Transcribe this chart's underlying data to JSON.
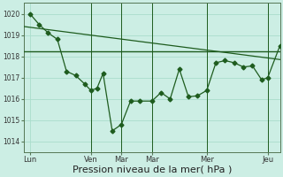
{
  "background_color": "#cceee4",
  "grid_color": "#aaddcc",
  "line_color": "#1e5c1e",
  "marker": "D",
  "marker_size": 2.5,
  "xlabel": "Pression niveau de la mer( hPa )",
  "xlabel_fontsize": 8,
  "ylim": [
    1013.5,
    1020.5
  ],
  "yticks": [
    1014,
    1015,
    1016,
    1017,
    1018,
    1019,
    1020
  ],
  "xlim": [
    0,
    42
  ],
  "xtick_positions": [
    1,
    11,
    16,
    21,
    30,
    40
  ],
  "xtick_labels": [
    "Lun",
    "Ven",
    "Mar",
    "Mar",
    "Mer",
    "Jeu"
  ],
  "vline_positions": [
    11,
    16,
    21,
    30,
    40
  ],
  "hline_y": 1018.25,
  "trend_x": [
    0,
    42
  ],
  "trend_y": [
    1019.4,
    1017.85
  ],
  "series1_x": [
    1,
    2.5,
    4,
    5.5,
    7,
    8.5,
    10,
    11,
    12,
    13,
    14.5,
    16,
    17.5,
    19,
    21,
    22.5,
    24,
    25.5,
    27,
    28.5,
    30,
    31.5,
    33,
    34.5,
    36,
    37.5,
    39,
    40,
    42
  ],
  "series1_y": [
    1020.0,
    1019.5,
    1019.1,
    1018.8,
    1017.3,
    1017.1,
    1016.7,
    1016.4,
    1016.5,
    1017.2,
    1014.5,
    1014.8,
    1015.9,
    1015.9,
    1015.9,
    1016.3,
    1016.0,
    1017.4,
    1016.1,
    1016.15,
    1016.4,
    1017.7,
    1017.8,
    1017.7,
    1017.5,
    1017.55,
    1016.9,
    1017.0,
    1018.5
  ]
}
